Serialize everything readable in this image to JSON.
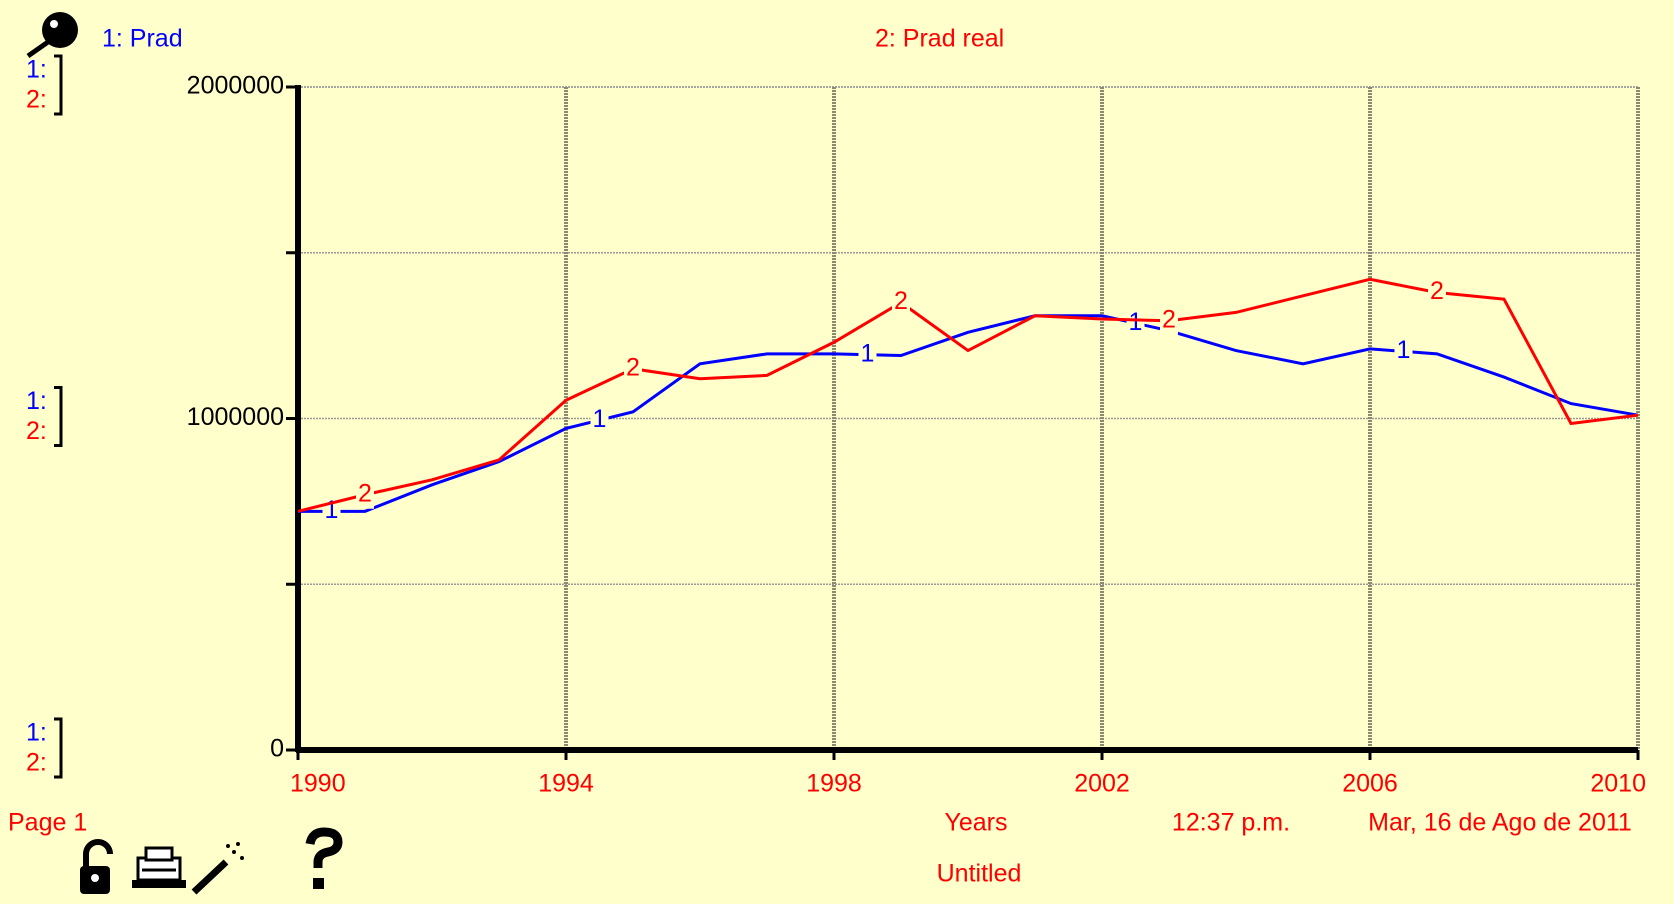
{
  "chart_data": {
    "type": "line",
    "series": [
      {
        "name": "1: Prad",
        "marker": "1",
        "color": "#0000ff",
        "values": [
          720000,
          720000,
          800000,
          870000,
          970000,
          1020000,
          1165000,
          1195000,
          1195000,
          1190000,
          1260000,
          1310000,
          1310000,
          1265000,
          1205000,
          1165000,
          1210000,
          1195000,
          1125000,
          1045000,
          1010000
        ]
      },
      {
        "name": "2: Prad real",
        "marker": "2",
        "color": "#ff0000",
        "values": [
          720000,
          770000,
          815000,
          875000,
          1055000,
          1150000,
          1120000,
          1130000,
          1230000,
          1350000,
          1205000,
          1310000,
          1300000,
          1295000,
          1320000,
          1370000,
          1420000,
          1380000,
          1360000,
          985000,
          1010000
        ]
      }
    ],
    "x": [
      1990,
      1991,
      1992,
      1993,
      1994,
      1995,
      1996,
      1997,
      1998,
      1999,
      2000,
      2001,
      2002,
      2003,
      2004,
      2005,
      2006,
      2007,
      2008,
      2009,
      2010
    ],
    "xlim": [
      1990,
      2010
    ],
    "xticks": [
      1990,
      1994,
      1998,
      2002,
      2006,
      2010
    ],
    "ylim": [
      0,
      2000000
    ],
    "yticks": [
      0,
      1000000,
      2000000
    ],
    "yminorticks": [
      500000,
      1500000
    ],
    "xlabel": "Years",
    "scale_labels": [
      "1:",
      "2:"
    ],
    "page": "Page 1",
    "time": "12:37 p.m.",
    "date": "Mar, 16 de Ago de 2011",
    "footer": "Untitled",
    "grid": true
  }
}
